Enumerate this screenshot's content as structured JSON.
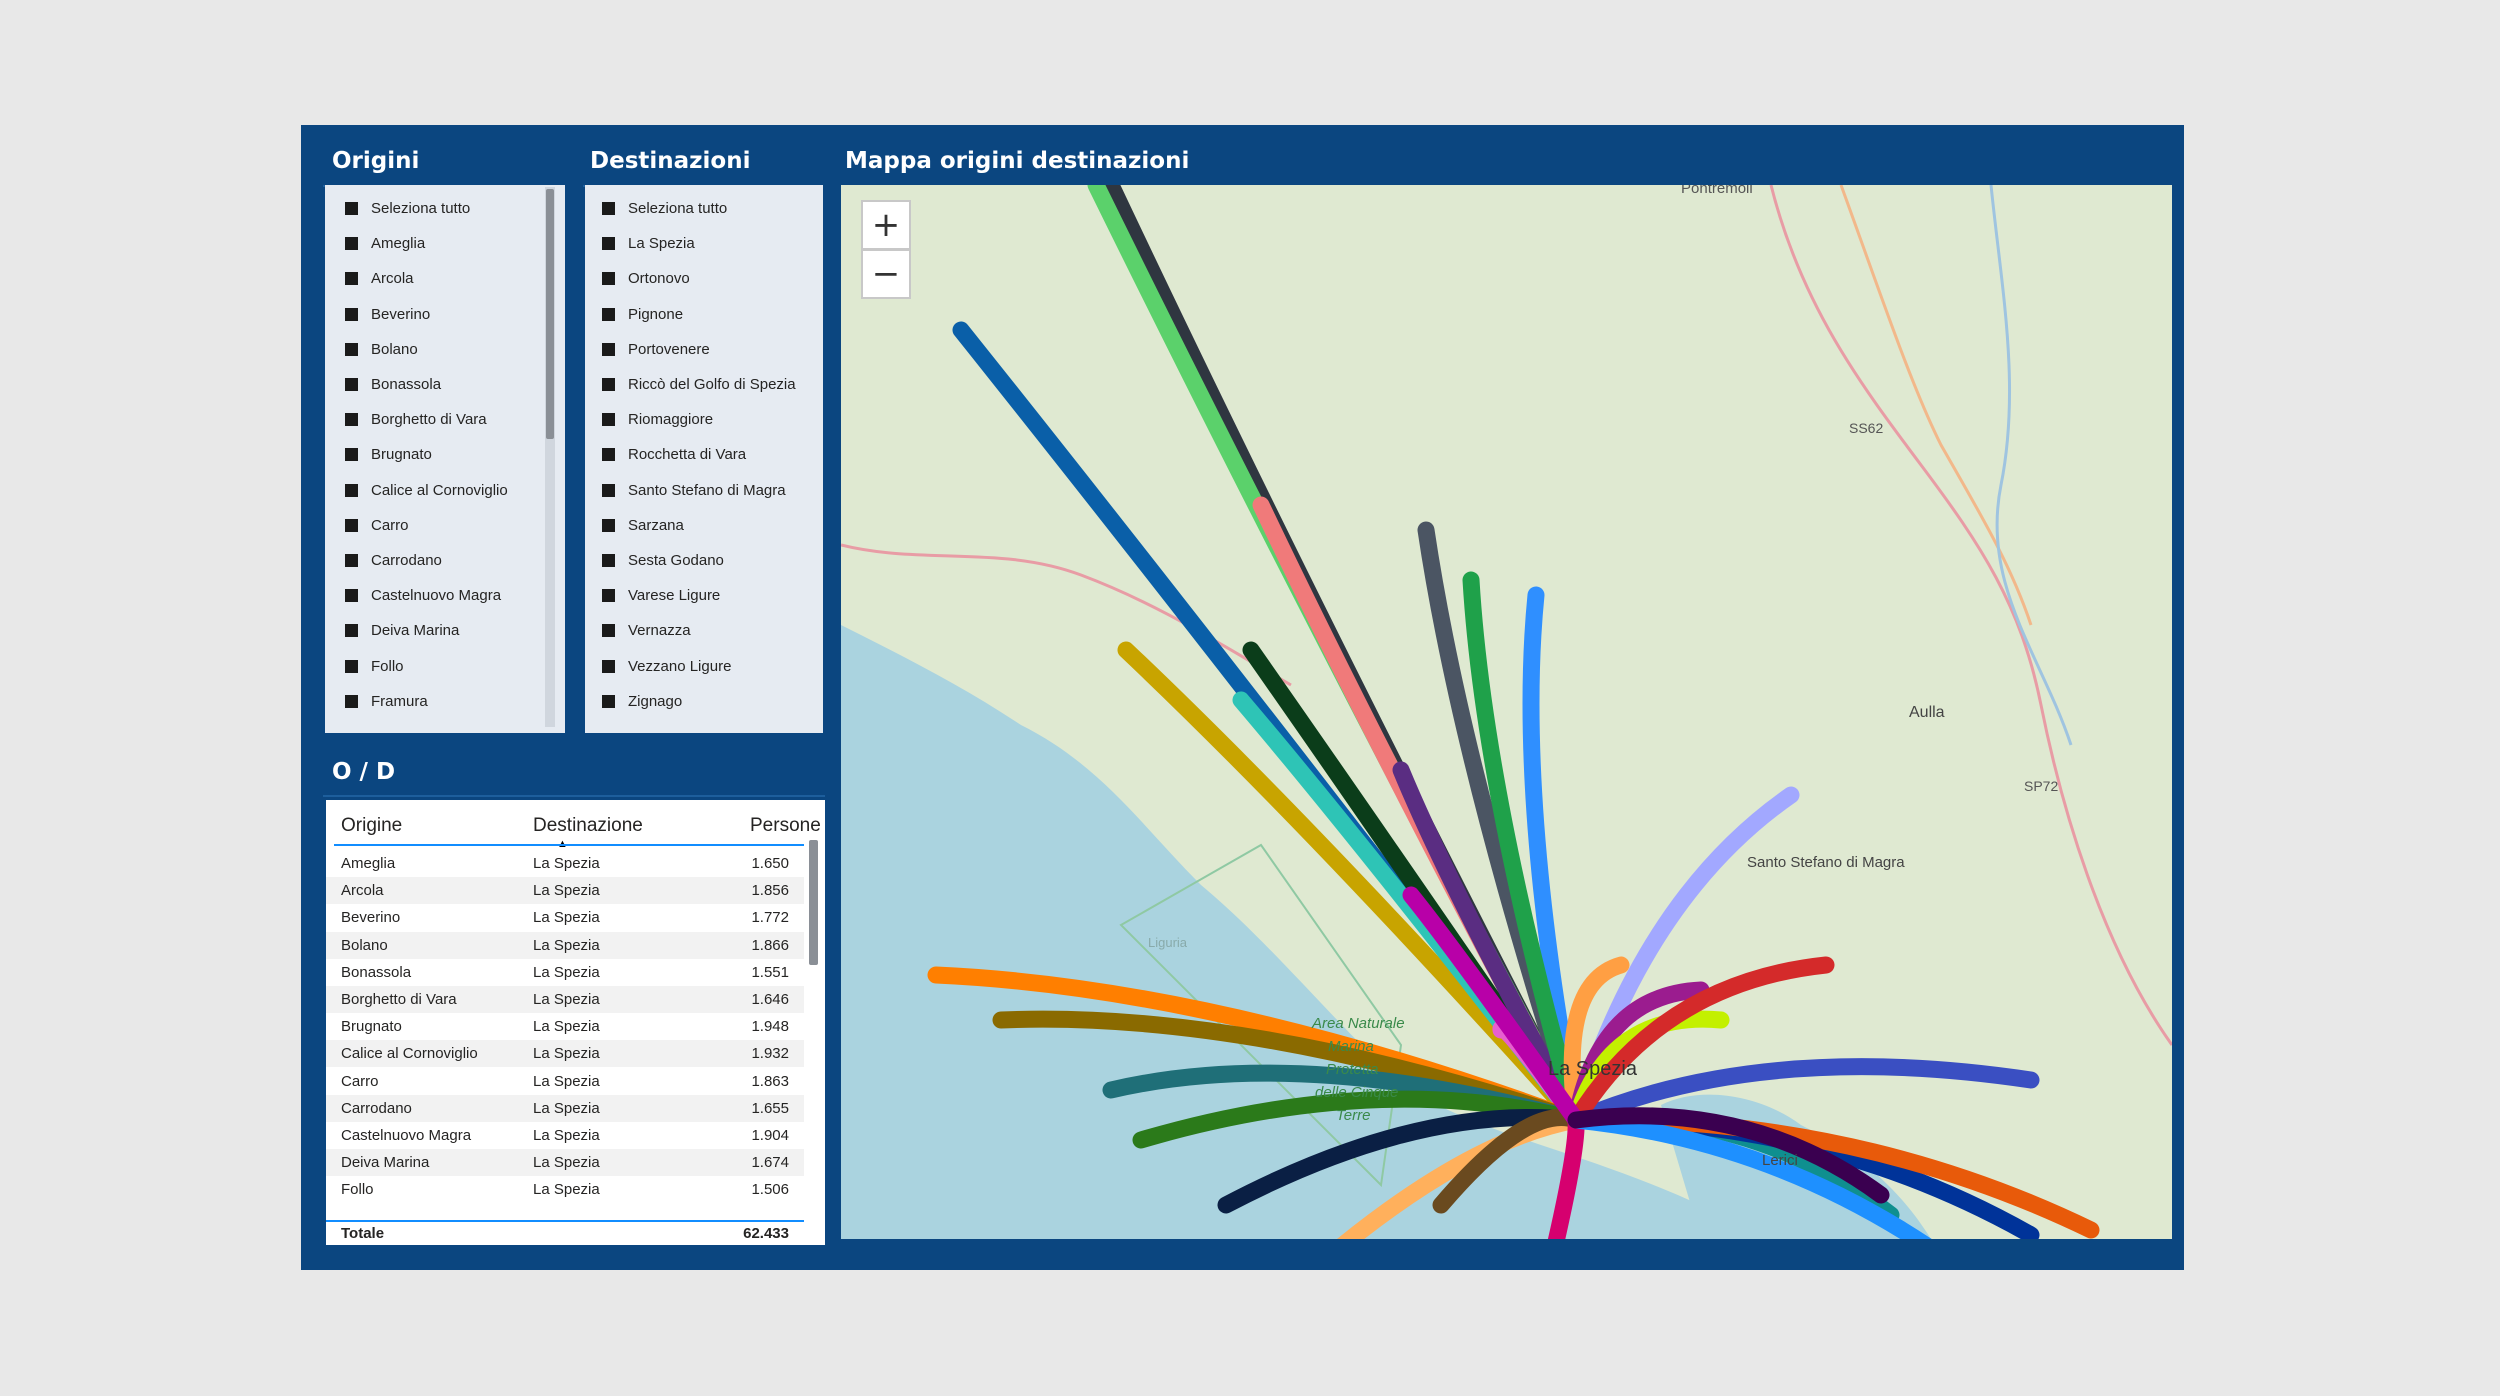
{
  "origins_slicer": {
    "title": "Origini",
    "items": [
      "Seleziona tutto",
      "Ameglia",
      "Arcola",
      "Beverino",
      "Bolano",
      "Bonassola",
      "Borghetto di Vara",
      "Brugnato",
      "Calice al Cornoviglio",
      "Carro",
      "Carrodano",
      "Castelnuovo Magra",
      "Deiva Marina",
      "Follo",
      "Framura"
    ]
  },
  "destinations_slicer": {
    "title": "Destinazioni",
    "items": [
      "Seleziona tutto",
      "La Spezia",
      "Ortonovo",
      "Pignone",
      "Portovenere",
      "Riccò del Golfo di Spezia",
      "Riomaggiore",
      "Rocchetta di Vara",
      "Santo Stefano di Magra",
      "Sarzana",
      "Sesta Godano",
      "Varese Ligure",
      "Vernazza",
      "Vezzano Ligure",
      "Zignago"
    ]
  },
  "map": {
    "title": "Mappa origini destinazioni",
    "zoom_in": "+",
    "zoom_out": "−",
    "labels": {
      "pontremoli": "Pontremoli",
      "ss62": "SS62",
      "aulla": "Aulla",
      "sp72": "SP72",
      "santo_stefano": "Santo Stefano di Magra",
      "la_spezia": "La Spezia",
      "area_1": "Area Naturale",
      "area_2": "Marina",
      "area_3": "Protetta",
      "area_4": "delle Cinque",
      "area_5": "Terre",
      "lerici": "Lerici",
      "liguria": "Liguria"
    },
    "flow_colors": [
      "#2f3640",
      "#5bd16b",
      "#0a5fa8",
      "#f07a7a",
      "#c8a400",
      "#0b3d1a",
      "#2ec4b6",
      "#4b5563",
      "#5a2d82",
      "#2f8fff",
      "#1fa14a",
      "#e75fd0",
      "#ff9f43",
      "#a2a8ff",
      "#9b1c8f",
      "#ff7f00",
      "#8a6a00",
      "#1f6f78",
      "#2b7a1a",
      "#0a1f44",
      "#ffb05c",
      "#3a4fc2",
      "#6a4a1f",
      "#d6006f",
      "#c3f000",
      "#d42a2a",
      "#0f8f8f",
      "#003399",
      "#e85a0a",
      "#1e90ff",
      "#b800a8",
      "#3a0050"
    ]
  },
  "od_table": {
    "title": "O / D",
    "columns": [
      "Origine",
      "Destinazione",
      "Persone"
    ],
    "rows": [
      [
        "Ameglia",
        "La Spezia",
        "1.650"
      ],
      [
        "Arcola",
        "La Spezia",
        "1.856"
      ],
      [
        "Beverino",
        "La Spezia",
        "1.772"
      ],
      [
        "Bolano",
        "La Spezia",
        "1.866"
      ],
      [
        "Bonassola",
        "La Spezia",
        "1.551"
      ],
      [
        "Borghetto di Vara",
        "La Spezia",
        "1.646"
      ],
      [
        "Brugnato",
        "La Spezia",
        "1.948"
      ],
      [
        "Calice al Cornoviglio",
        "La Spezia",
        "1.932"
      ],
      [
        "Carro",
        "La Spezia",
        "1.863"
      ],
      [
        "Carrodano",
        "La Spezia",
        "1.655"
      ],
      [
        "Castelnuovo Magra",
        "La Spezia",
        "1.904"
      ],
      [
        "Deiva Marina",
        "La Spezia",
        "1.674"
      ],
      [
        "Follo",
        "La Spezia",
        "1.506"
      ]
    ],
    "total_label": "Totale",
    "total_value": "62.433"
  }
}
